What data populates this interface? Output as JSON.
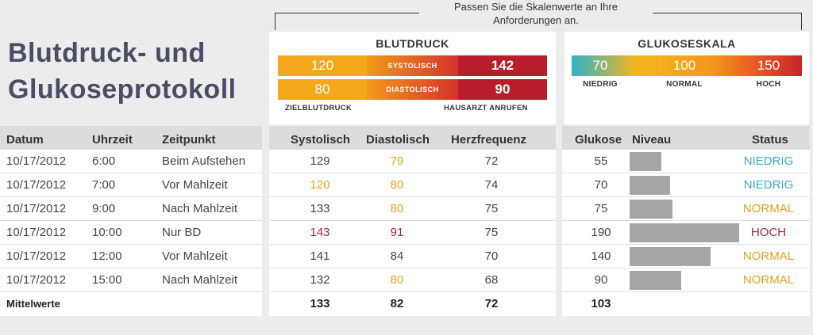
{
  "note": {
    "line1": "Passen Sie die Skalenwerte an Ihre",
    "line2": "Anforderungen an."
  },
  "title": {
    "line1": "Blutdruck- und",
    "line2": "Glukoseprotokoll"
  },
  "bp_scale": {
    "title": "BLUTDRUCK",
    "systolic": {
      "target": "120",
      "label": "SYSTOLISCH",
      "alert": "142"
    },
    "diastolic": {
      "target": "80",
      "label": "DIASTOLISCH",
      "alert": "90"
    },
    "target_label": "ZIELBLUTDRUCK",
    "alert_label": "HAUSARZT ANRUFEN"
  },
  "glucose_scale": {
    "title": "GLUKOSESKALA",
    "low": {
      "value": "70",
      "label": "NIEDRIG"
    },
    "normal": {
      "value": "100",
      "label": "NORMAL"
    },
    "high": {
      "value": "150",
      "label": "HOCH"
    }
  },
  "headers": {
    "datum": "Datum",
    "uhrzeit": "Uhrzeit",
    "zeitpunkt": "Zeitpunkt",
    "systolisch": "Systolisch",
    "diastolisch": "Diastolisch",
    "herzfrequenz": "Herzfrequenz",
    "glukose": "Glukose",
    "niveau": "Niveau",
    "status": "Status"
  },
  "rows": [
    {
      "datum": "10/17/2012",
      "uhrzeit": "6:00",
      "zeitpunkt": "Beim Aufstehen",
      "systolisch": "129",
      "diastolisch": "79",
      "herzfrequenz": "72",
      "glukose": "55",
      "niveau": 55,
      "status": "NIEDRIG"
    },
    {
      "datum": "10/17/2012",
      "uhrzeit": "7:00",
      "zeitpunkt": "Vor Mahlzeit",
      "systolisch": "120",
      "diastolisch": "80",
      "herzfrequenz": "74",
      "glukose": "70",
      "niveau": 70,
      "status": "NIEDRIG"
    },
    {
      "datum": "10/17/2012",
      "uhrzeit": "9:00",
      "zeitpunkt": "Nach Mahlzeit",
      "systolisch": "133",
      "diastolisch": "80",
      "herzfrequenz": "75",
      "glukose": "75",
      "niveau": 75,
      "status": "NORMAL"
    },
    {
      "datum": "10/17/2012",
      "uhrzeit": "10:00",
      "zeitpunkt": "Nur BD",
      "systolisch": "143",
      "diastolisch": "91",
      "herzfrequenz": "75",
      "glukose": "190",
      "niveau": 190,
      "status": "HOCH"
    },
    {
      "datum": "10/17/2012",
      "uhrzeit": "12:00",
      "zeitpunkt": "Vor Mahlzeit",
      "systolisch": "141",
      "diastolisch": "84",
      "herzfrequenz": "70",
      "glukose": "140",
      "niveau": 140,
      "status": "NORMAL"
    },
    {
      "datum": "10/17/2012",
      "uhrzeit": "15:00",
      "zeitpunkt": "Nach Mahlzeit",
      "systolisch": "132",
      "diastolisch": "80",
      "herzfrequenz": "68",
      "glukose": "90",
      "niveau": 90,
      "status": "NORMAL"
    }
  ],
  "averages": {
    "label": "Mittelwerte",
    "systolisch": "133",
    "diastolisch": "82",
    "herzfrequenz": "72",
    "glukose": "103"
  },
  "colors": {
    "target": "#e8a320",
    "alert": "#9c2a3a",
    "normal_text": "#444444",
    "status_low": "#3fa9c9",
    "status_normal": "#e0a020",
    "status_high": "#9c2a3a",
    "level_bar": "#a6a6a6"
  }
}
